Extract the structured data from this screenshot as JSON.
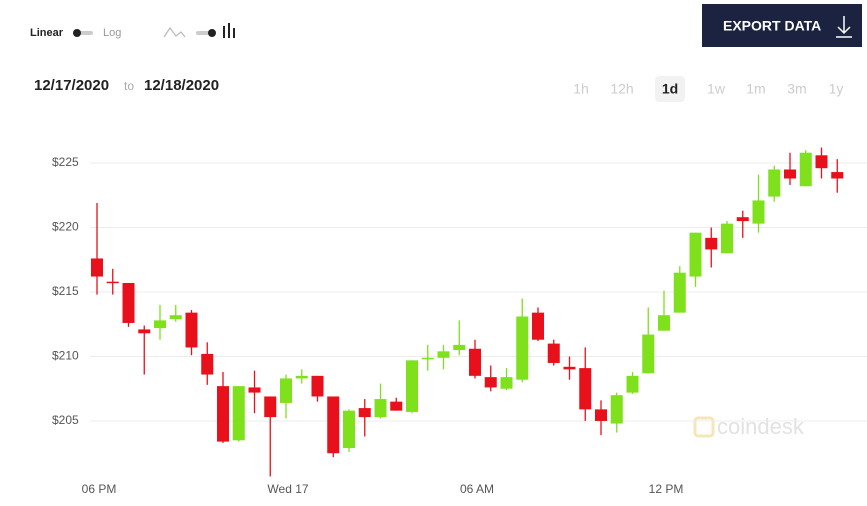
{
  "controls": {
    "scale_options": [
      "Linear",
      "Log"
    ],
    "export_button": "EXPORT DATA",
    "date_from": "12/17/2020",
    "date_separator": "to",
    "date_to": "12/18/2020",
    "ranges": [
      "1h",
      "12h",
      "1d",
      "1w",
      "1m",
      "3m",
      "1y"
    ],
    "active_range": "1d",
    "watermark": "coindesk"
  },
  "chart_data": {
    "type": "candlestick",
    "categories": [
      "06 PM",
      null,
      null,
      null,
      null,
      null,
      null,
      null,
      null,
      null,
      null,
      null,
      "Wed 17",
      null,
      null,
      null,
      null,
      null,
      null,
      null,
      null,
      null,
      null,
      null,
      "06 AM",
      null,
      null,
      null,
      null,
      null,
      null,
      null,
      null,
      null,
      null,
      null,
      "12 PM",
      null,
      null,
      null,
      null,
      null,
      null,
      null,
      null,
      null,
      null,
      null
    ],
    "open": [
      217.6,
      215.8,
      215.7,
      212.1,
      212.2,
      212.9,
      213.4,
      210.2,
      207.7,
      203.5,
      207.6,
      206.9,
      206.4,
      208.3,
      208.5,
      206.9,
      202.9,
      206.0,
      205.3,
      206.5,
      205.7,
      209.8,
      209.9,
      210.5,
      210.6,
      208.4,
      207.5,
      208.2,
      213.4,
      211.0,
      209.2,
      209.1,
      205.9,
      204.8,
      207.2,
      208.7,
      212.0,
      213.4,
      216.2,
      219.2,
      218.0,
      220.8,
      220.3,
      222.4,
      224.5,
      223.2,
      225.6,
      224.3
    ],
    "high": [
      221.9,
      216.8,
      215.7,
      212.4,
      214.0,
      214.0,
      213.6,
      211.1,
      208.8,
      207.7,
      208.9,
      206.9,
      208.6,
      209.0,
      208.5,
      206.9,
      205.9,
      206.7,
      207.9,
      206.8,
      209.7,
      210.9,
      210.9,
      212.8,
      211.3,
      209.3,
      209.1,
      214.5,
      213.8,
      211.3,
      210.0,
      210.7,
      206.6,
      207.2,
      208.8,
      213.8,
      215.1,
      217.0,
      219.6,
      220.0,
      220.5,
      221.3,
      224.1,
      224.8,
      225.8,
      226.0,
      226.2,
      225.3
    ],
    "low": [
      214.8,
      214.8,
      212.3,
      208.6,
      211.3,
      212.7,
      210.1,
      207.8,
      203.3,
      203.4,
      205.6,
      200.7,
      205.2,
      207.9,
      206.5,
      202.2,
      202.6,
      203.8,
      205.2,
      205.8,
      205.6,
      208.9,
      209.0,
      210.1,
      208.3,
      207.3,
      207.4,
      208.0,
      211.2,
      209.3,
      208.2,
      205.0,
      203.9,
      204.1,
      207.1,
      208.7,
      212.0,
      213.4,
      215.4,
      216.9,
      218.0,
      219.2,
      219.6,
      222.0,
      223.3,
      223.2,
      223.8,
      222.7
    ],
    "close": [
      216.2,
      215.7,
      212.6,
      211.8,
      212.8,
      213.2,
      210.7,
      208.6,
      203.4,
      207.7,
      207.2,
      205.3,
      208.3,
      208.5,
      206.9,
      202.5,
      205.8,
      205.3,
      206.7,
      205.8,
      209.7,
      209.9,
      210.4,
      210.9,
      208.5,
      207.6,
      208.4,
      213.1,
      211.3,
      209.5,
      209.0,
      205.9,
      205.0,
      207.0,
      208.5,
      211.7,
      213.2,
      216.5,
      219.6,
      218.3,
      220.3,
      220.5,
      222.1,
      224.5,
      223.8,
      225.8,
      224.6,
      223.8
    ],
    "up_color": "#7fe01c",
    "down_color": "#e8101a",
    "ylim": [
      200.4,
      227.6
    ],
    "yticks": [
      {
        "value": 205,
        "label": "$205"
      },
      {
        "value": 210,
        "label": "$210"
      },
      {
        "value": 215,
        "label": "$215"
      },
      {
        "value": 220,
        "label": "$220"
      },
      {
        "value": 225,
        "label": "$225"
      }
    ],
    "grid": true
  }
}
